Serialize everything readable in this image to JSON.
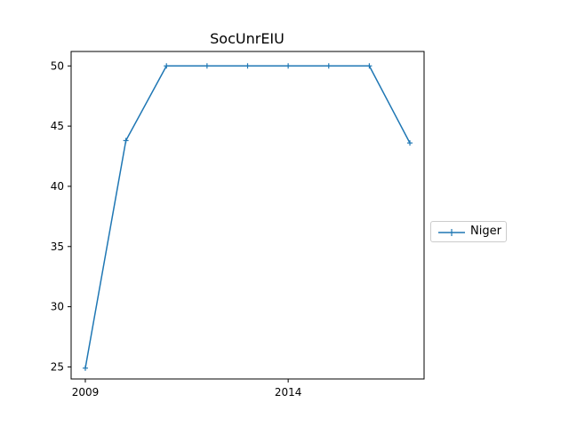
{
  "chart_data": {
    "type": "line",
    "title": "SocUnrEIU",
    "xlabel": "",
    "ylabel": "",
    "x": [
      2009,
      2010,
      2011,
      2012,
      2013,
      2014,
      2015,
      2016,
      2017
    ],
    "xticks": [
      "2009",
      "2014"
    ],
    "yticks": [
      "25",
      "30",
      "35",
      "40",
      "45",
      "50"
    ],
    "xlim": [
      2008.65,
      2017.35
    ],
    "ylim": [
      24.0,
      51.2
    ],
    "grid": false,
    "legend_position": "center-right outside",
    "series": [
      {
        "name": "Niger",
        "color": "#1f77b4",
        "marker": "plus",
        "values": [
          24.9,
          43.8,
          50,
          50,
          50,
          50,
          50,
          50,
          43.6
        ]
      }
    ]
  }
}
